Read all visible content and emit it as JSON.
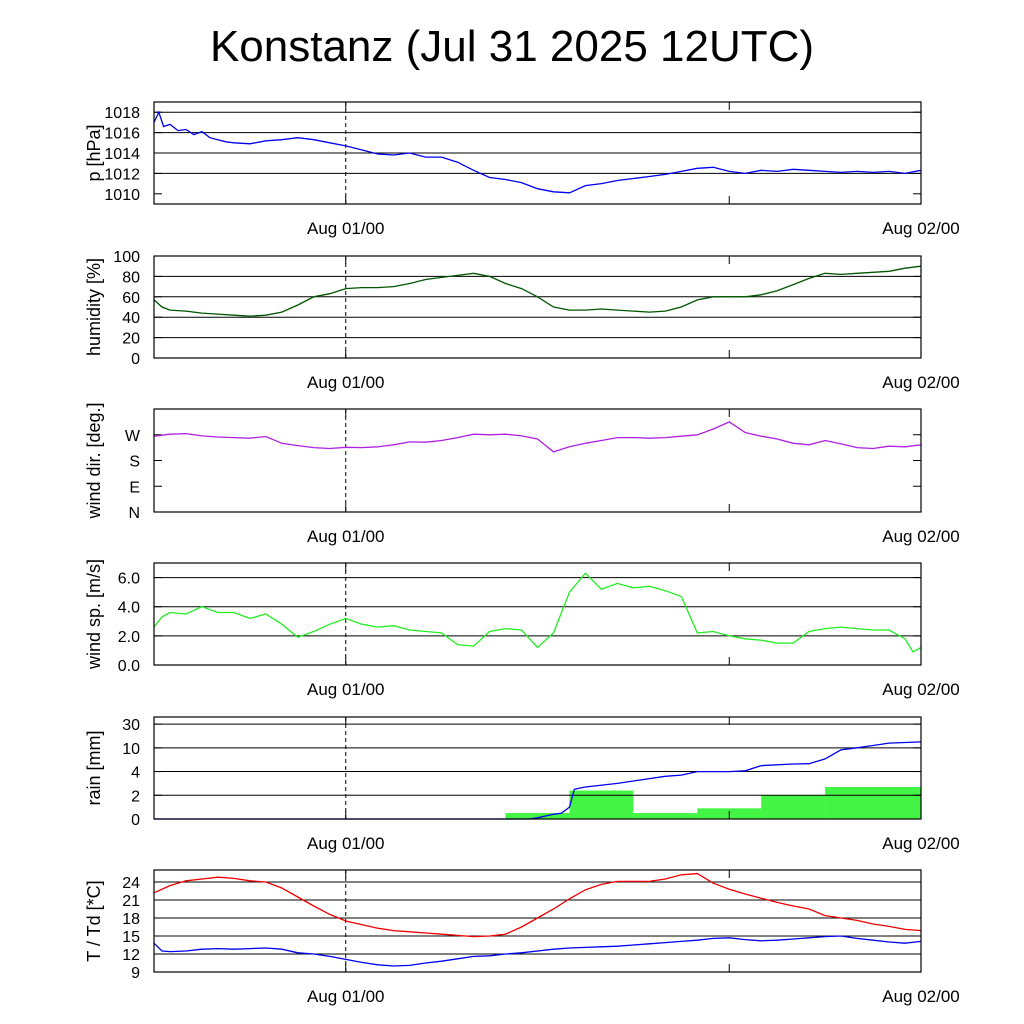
{
  "title": "Konstanz (Jul 31 2025 12UTC)",
  "x_tick_labels": [
    "Aug 01/00",
    "Aug 02/00"
  ],
  "chart_data": [
    {
      "type": "line",
      "ylabel": "p [hPa]",
      "ylim": [
        1009,
        1019
      ],
      "yticks": [
        1010,
        1012,
        1014,
        1016,
        1018
      ],
      "grid": true,
      "series": [
        {
          "color": "#0000ee",
          "x": [
            0,
            0.3,
            0.6,
            1,
            1.5,
            2,
            2.5,
            3,
            3.5,
            4,
            4.5,
            5,
            6,
            7,
            8,
            9,
            10,
            11,
            12,
            13,
            14,
            15,
            16,
            17,
            18,
            19,
            20,
            21,
            22,
            23,
            24,
            25,
            26,
            27,
            28,
            29,
            30,
            31,
            32,
            33,
            34,
            35,
            36,
            37,
            38,
            39,
            40,
            41,
            42,
            43,
            44,
            45,
            46,
            47,
            48
          ],
          "values": [
            1017.0,
            1018.0,
            1016.6,
            1016.8,
            1016.2,
            1016.3,
            1015.8,
            1016.1,
            1015.5,
            1015.3,
            1015.1,
            1015.0,
            1014.9,
            1015.2,
            1015.3,
            1015.5,
            1015.3,
            1015.0,
            1014.7,
            1014.3,
            1013.9,
            1013.8,
            1014.0,
            1013.6,
            1013.6,
            1013.1,
            1012.3,
            1011.6,
            1011.4,
            1011.1,
            1010.5,
            1010.2,
            1010.1,
            1010.8,
            1011.0,
            1011.3,
            1011.5,
            1011.7,
            1011.9,
            1012.2,
            1012.5,
            1012.6,
            1012.2,
            1012.0,
            1012.3,
            1012.2,
            1012.4,
            1012.3,
            1012.2,
            1012.1,
            1012.2,
            1012.1,
            1012.2,
            1012.0,
            1012.3
          ]
        }
      ]
    },
    {
      "type": "line",
      "ylabel": "humidity [%]",
      "ylim": [
        0,
        100
      ],
      "yticks": [
        0,
        20,
        40,
        60,
        80,
        100
      ],
      "grid": true,
      "series": [
        {
          "color": "#005500",
          "x": [
            0,
            0.5,
            1,
            2,
            3,
            4,
            5,
            6,
            7,
            8,
            9,
            10,
            11,
            12,
            13,
            14,
            15,
            16,
            17,
            18,
            19,
            20,
            21,
            22,
            23,
            24,
            25,
            26,
            27,
            28,
            29,
            30,
            31,
            32,
            33,
            34,
            35,
            36,
            37,
            38,
            39,
            40,
            41,
            42,
            43,
            44,
            45,
            46,
            47,
            48
          ],
          "values": [
            57,
            50,
            47,
            46,
            44,
            43,
            42,
            41,
            42,
            45,
            52,
            60,
            63,
            68,
            69,
            69,
            70,
            73,
            77,
            79,
            81,
            83,
            80,
            73,
            68,
            60,
            50,
            47,
            47,
            48,
            47,
            46,
            45,
            46,
            50,
            57,
            60,
            60,
            60,
            62,
            66,
            72,
            78,
            83,
            82,
            83,
            84,
            85,
            88,
            90
          ]
        }
      ]
    },
    {
      "type": "line",
      "ylabel": "wind dir. [deg.]",
      "ylim": [
        0,
        360
      ],
      "ytick_labels": [
        "N",
        "E",
        "S",
        "W"
      ],
      "ytick_values": [
        0,
        90,
        180,
        270
      ],
      "grid": false,
      "series": [
        {
          "color": "#b020e0",
          "x": [
            0,
            1,
            2,
            3,
            4,
            5,
            6,
            7,
            8,
            9,
            10,
            11,
            12,
            13,
            14,
            15,
            16,
            17,
            18,
            19,
            20,
            21,
            22,
            23,
            24,
            25,
            26,
            27,
            28,
            29,
            30,
            31,
            32,
            33,
            34,
            35,
            36,
            37,
            38,
            39,
            40,
            41,
            42,
            43,
            44,
            45,
            46,
            47,
            48
          ],
          "values": [
            265,
            272,
            274,
            266,
            262,
            260,
            258,
            264,
            240,
            232,
            225,
            222,
            226,
            225,
            228,
            235,
            245,
            244,
            250,
            260,
            272,
            270,
            272,
            266,
            255,
            210,
            228,
            240,
            250,
            260,
            260,
            258,
            260,
            265,
            270,
            290,
            315,
            278,
            265,
            255,
            240,
            235,
            250,
            238,
            225,
            222,
            230,
            228,
            235
          ]
        }
      ]
    },
    {
      "type": "line",
      "ylabel": "wind sp. [m/s]",
      "ylim": [
        0,
        7
      ],
      "yticks": [
        0.0,
        2.0,
        4.0,
        6.0
      ],
      "ytick_labels": [
        "0.0",
        "2.0",
        "4.0",
        "6.0"
      ],
      "grid": true,
      "series": [
        {
          "color": "#22ee22",
          "x": [
            0,
            0.5,
            1,
            2,
            3,
            4,
            5,
            6,
            7,
            8,
            9,
            10,
            11,
            12,
            13,
            14,
            15,
            16,
            17,
            18,
            19,
            20,
            21,
            22,
            23,
            24,
            25,
            26,
            27,
            28,
            29,
            30,
            31,
            32,
            33,
            34,
            35,
            36,
            37,
            38,
            39,
            40,
            41,
            42,
            43,
            44,
            45,
            46,
            47,
            47.5,
            48
          ],
          "values": [
            2.6,
            3.3,
            3.6,
            3.5,
            4.0,
            3.6,
            3.6,
            3.2,
            3.5,
            2.8,
            1.9,
            2.3,
            2.8,
            3.2,
            2.8,
            2.6,
            2.7,
            2.4,
            2.3,
            2.2,
            1.4,
            1.3,
            2.3,
            2.5,
            2.4,
            1.2,
            2.2,
            5.0,
            6.3,
            5.2,
            5.6,
            5.3,
            5.4,
            5.1,
            4.7,
            2.2,
            2.3,
            2.0,
            1.8,
            1.7,
            1.5,
            1.5,
            2.3,
            2.5,
            2.6,
            2.5,
            2.4,
            2.4,
            1.8,
            0.9,
            1.2
          ]
        }
      ]
    },
    {
      "type": "bar",
      "ylabel": "rain [mm]",
      "ytick_labels": [
        "0",
        "2",
        "4",
        "10",
        "30"
      ],
      "ytick_values": [
        0,
        2,
        4,
        10,
        30
      ],
      "ytick_levels": [
        0,
        1,
        2,
        3,
        4
      ],
      "grid": true,
      "bars": [
        {
          "x0": 22,
          "x1": 26,
          "value": 0.5
        },
        {
          "x0": 26,
          "x1": 30,
          "value": 2.4
        },
        {
          "x0": 30,
          "x1": 34,
          "value": 0.5
        },
        {
          "x0": 34,
          "x1": 38,
          "value": 0.9
        },
        {
          "x0": 38,
          "x1": 42,
          "value": 2.0
        },
        {
          "x0": 42,
          "x1": 48,
          "value": 2.7
        }
      ],
      "bar_color": "#44f444",
      "cumulative": {
        "color": "#0000ee",
        "x": [
          0,
          23.5,
          24,
          25,
          25.5,
          26,
          26.3,
          27,
          29,
          30,
          32,
          33,
          34,
          35,
          36,
          37,
          38,
          40,
          41,
          42,
          43,
          44,
          45,
          46,
          48
        ],
        "values": [
          0,
          0,
          0.1,
          0.4,
          0.5,
          1.0,
          2.5,
          2.7,
          3.0,
          3.2,
          3.6,
          3.7,
          4.0,
          4.0,
          4.0,
          4.2,
          5.5,
          5.9,
          6.0,
          7.2,
          9.5,
          10.0,
          12.0,
          14.0,
          15.0
        ]
      }
    },
    {
      "type": "line",
      "ylabel": "T / Td [*C]",
      "ylim": [
        9,
        26
      ],
      "yticks": [
        9,
        12,
        15,
        18,
        21,
        24
      ],
      "grid": true,
      "series": [
        {
          "color": "#ee0000",
          "x": [
            0,
            1,
            2,
            3,
            4,
            5,
            6,
            7,
            8,
            9,
            10,
            11,
            12,
            13,
            14,
            15,
            16,
            17,
            18,
            19,
            20,
            21,
            22,
            23,
            24,
            25,
            26,
            27,
            28,
            29,
            30,
            31,
            32,
            33,
            34,
            35,
            36,
            37,
            38,
            39,
            40,
            41,
            42,
            43,
            44,
            45,
            46,
            47,
            48
          ],
          "values": [
            22.2,
            23.4,
            24.2,
            24.5,
            24.8,
            24.6,
            24.2,
            24.0,
            23.0,
            21.5,
            20.0,
            18.6,
            17.5,
            16.9,
            16.3,
            15.9,
            15.7,
            15.5,
            15.3,
            15.1,
            14.9,
            15.0,
            15.3,
            16.5,
            18.0,
            19.5,
            21.2,
            22.7,
            23.6,
            24.1,
            24.1,
            24.1,
            24.5,
            25.2,
            25.4,
            23.8,
            22.8,
            22.0,
            21.3,
            20.6,
            20.0,
            19.5,
            18.4,
            18.0,
            17.6,
            17.0,
            16.6,
            16.1,
            15.9
          ]
        },
        {
          "color": "#0000ee",
          "x": [
            0,
            0.5,
            1,
            2,
            3,
            4,
            5,
            6,
            7,
            8,
            9,
            10,
            11,
            12,
            13,
            14,
            15,
            16,
            17,
            18,
            19,
            20,
            21,
            22,
            23,
            24,
            25,
            26,
            27,
            28,
            29,
            30,
            31,
            32,
            33,
            34,
            35,
            36,
            37,
            38,
            39,
            40,
            41,
            42,
            43,
            44,
            45,
            46,
            47,
            48
          ],
          "values": [
            13.8,
            12.5,
            12.4,
            12.5,
            12.8,
            12.9,
            12.8,
            12.9,
            13.0,
            12.8,
            12.2,
            12.0,
            11.6,
            11.1,
            10.6,
            10.2,
            10.0,
            10.1,
            10.5,
            10.8,
            11.2,
            11.6,
            11.7,
            12.0,
            12.2,
            12.5,
            12.8,
            13.0,
            13.1,
            13.2,
            13.3,
            13.5,
            13.7,
            13.9,
            14.1,
            14.3,
            14.6,
            14.7,
            14.4,
            14.2,
            14.3,
            14.5,
            14.7,
            14.9,
            15.0,
            14.6,
            14.3,
            14.0,
            13.8,
            14.1
          ]
        }
      ]
    }
  ]
}
